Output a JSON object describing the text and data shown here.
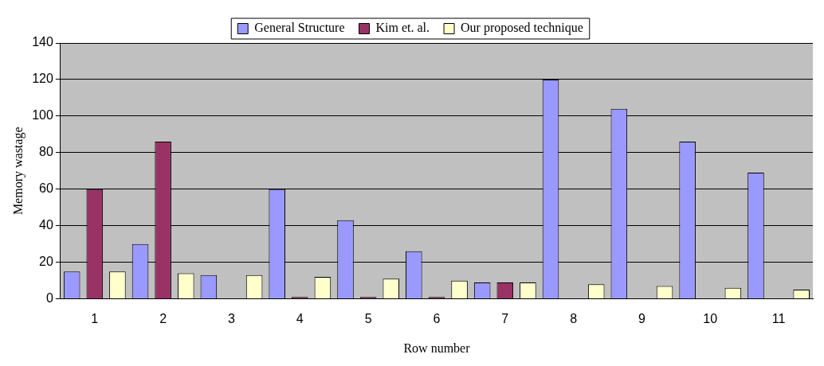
{
  "chart_data": {
    "type": "bar",
    "xlabel": "Row number",
    "ylabel": "Memory wastage",
    "categories": [
      "1",
      "2",
      "3",
      "4",
      "5",
      "6",
      "7",
      "8",
      "9",
      "10",
      "11"
    ],
    "series": [
      {
        "name": "General Structure",
        "color": "#9999ff",
        "values": [
          15,
          30,
          13,
          60,
          43,
          26,
          9,
          120,
          104,
          86,
          69
        ]
      },
      {
        "name": "Kim et. al.",
        "color": "#993366",
        "values": [
          60,
          86,
          null,
          1,
          1,
          1,
          9,
          null,
          null,
          null,
          null
        ]
      },
      {
        "name": "Our proposed technique",
        "color": "#ffffcc",
        "values": [
          15,
          14,
          13,
          12,
          11,
          10,
          9,
          8,
          7,
          6,
          5
        ]
      }
    ],
    "ylim": [
      0,
      140
    ],
    "yticks": [
      0,
      20,
      40,
      60,
      80,
      100,
      120,
      140
    ],
    "grid": "y",
    "legend": "top"
  }
}
